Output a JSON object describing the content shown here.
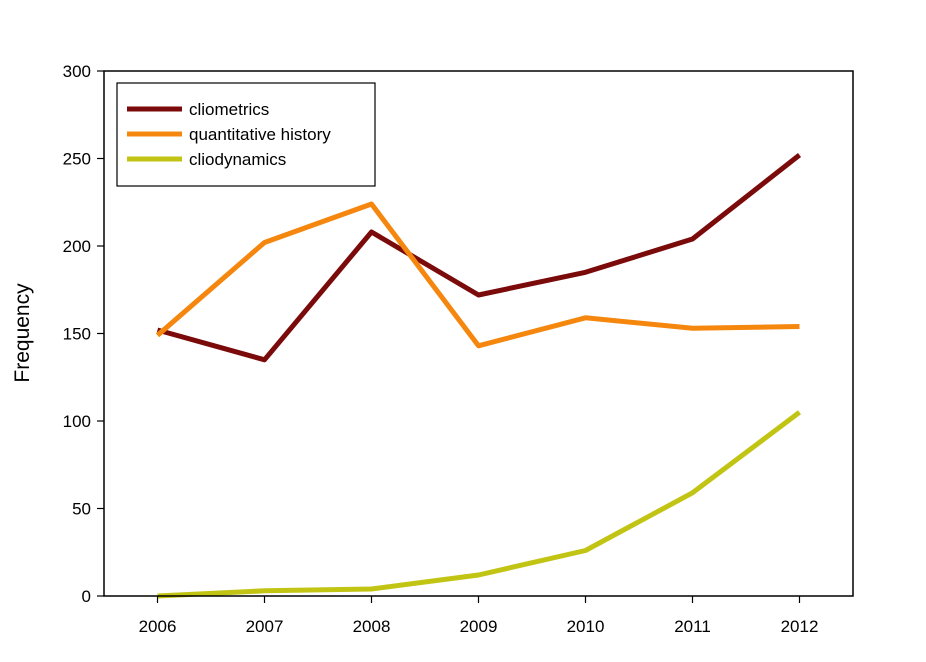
{
  "chart_data": {
    "type": "line",
    "title": "",
    "xlabel": "",
    "ylabel": "Frequency",
    "x": [
      2006,
      2007,
      2008,
      2009,
      2010,
      2011,
      2012
    ],
    "x_ticks": [
      "2006",
      "2007",
      "2008",
      "2009",
      "2010",
      "2011",
      "2012"
    ],
    "xlim": [
      2005.5,
      2012.5
    ],
    "ylim": [
      0,
      300
    ],
    "y_ticks": [
      "0",
      "50",
      "100",
      "150",
      "200",
      "250",
      "300"
    ],
    "y_tick_values": [
      0,
      50,
      100,
      150,
      200,
      250,
      300
    ],
    "grid": false,
    "legend_position": "top-left",
    "series": [
      {
        "name": "cliometrics",
        "color": "#7b0a0a",
        "values": [
          152,
          135,
          208,
          172,
          185,
          204,
          252
        ]
      },
      {
        "name": "quantitative history",
        "color": "#f5870f",
        "values": [
          149,
          202,
          224,
          143,
          159,
          153,
          154
        ]
      },
      {
        "name": "cliodynamics",
        "color": "#c2c414",
        "values": [
          0,
          3,
          4,
          12,
          26,
          59,
          105
        ]
      }
    ]
  }
}
